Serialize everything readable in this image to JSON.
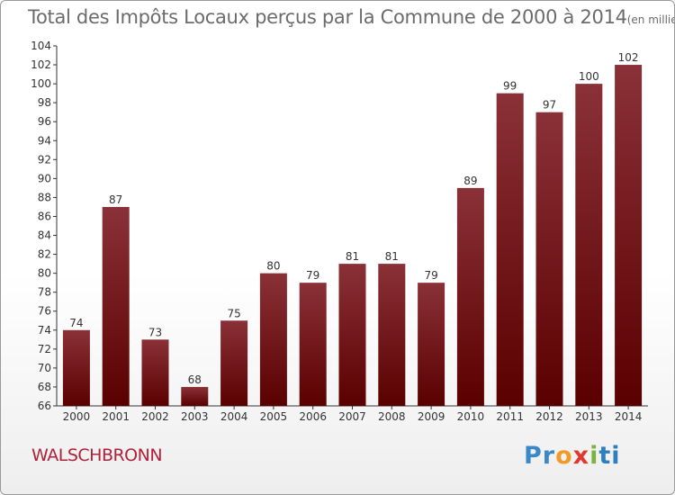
{
  "title": "Total des Impôts Locaux perçus par la Commune de 2000 à 2014",
  "title_unit": "(en milliers d'€)",
  "commune": "WALSCHBRONN",
  "logo": {
    "text": "Proxiti",
    "letters": [
      "Pr",
      "o",
      "x",
      "i",
      "ti"
    ]
  },
  "colors": {
    "bar_dark": "#5a0000",
    "bar_light": "#8a3138",
    "axis": "#333333",
    "grid": "#bbbbbb",
    "commune": "#b0213a"
  },
  "chart_data": {
    "type": "bar",
    "title": "Total des Impôts Locaux perçus par la Commune de 2000 à 2014",
    "xlabel": "",
    "ylabel": "",
    "categories": [
      "2000",
      "2001",
      "2002",
      "2003",
      "2004",
      "2005",
      "2006",
      "2007",
      "2008",
      "2009",
      "2010",
      "2011",
      "2012",
      "2013",
      "2014"
    ],
    "values": [
      74,
      87,
      73,
      68,
      75,
      80,
      79,
      81,
      81,
      79,
      89,
      99,
      97,
      100,
      102
    ],
    "ylim": [
      66,
      104
    ],
    "yticks": [
      66,
      68,
      70,
      72,
      74,
      76,
      78,
      80,
      82,
      84,
      86,
      88,
      90,
      92,
      94,
      96,
      98,
      100,
      102,
      104
    ],
    "grid": false,
    "legend": "none"
  }
}
